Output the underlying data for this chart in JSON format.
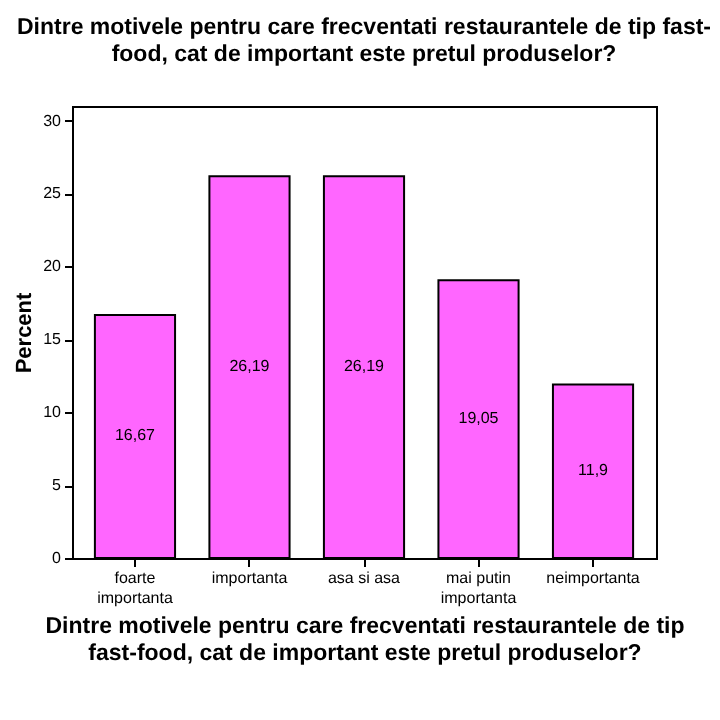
{
  "chart_data": {
    "type": "bar",
    "title": "Dintre motivele pentru care frecventati restaurantele de tip fast-food, cat de important este pretul produselor?",
    "xlabel": "Dintre motivele pentru care frecventati restaurantele de tip fast-food, cat de important este pretul produselor?",
    "ylabel": "Percent",
    "categories": [
      "foarte importanta",
      "importanta",
      "asa si asa",
      "mai putin importanta",
      "neimportanta"
    ],
    "values": [
      16.67,
      26.19,
      26.19,
      19.05,
      11.9
    ],
    "value_labels": [
      "16,67",
      "26,19",
      "26,19",
      "19,05",
      "11,9"
    ],
    "color": "#ff66ff",
    "ylim": [
      0,
      31
    ],
    "yticks": [
      0,
      5,
      10,
      15,
      20,
      25,
      30
    ],
    "grid": false
  }
}
